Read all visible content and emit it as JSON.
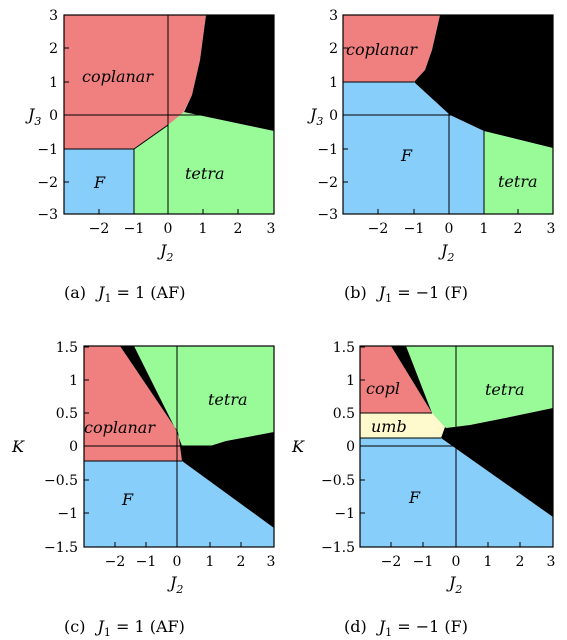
{
  "panels": [
    {
      "id": "a",
      "caption": {
        "label": "(a)",
        "eq": "J",
        "eq_sub": "1",
        "eq_rest": " = 1 (AF)"
      },
      "xlabel": {
        "main": "J",
        "sub": "2"
      },
      "ylabel": {
        "main": "J",
        "sub": "3"
      },
      "xticks": [
        "−2",
        "−1",
        "0",
        "1",
        "2",
        "3"
      ],
      "yticks": [
        "3",
        "2",
        "1",
        "0",
        "−1",
        "−2",
        "−3"
      ],
      "regions": {
        "coplanar": {
          "label": "coplanar",
          "color": "#f08080"
        },
        "F": {
          "label": "F",
          "color": "#87cefa"
        },
        "tetra": {
          "label": "tetra",
          "color": "#98fb98"
        },
        "black": {
          "label": "",
          "color": "#000000"
        }
      }
    },
    {
      "id": "b",
      "caption": {
        "label": "(b)",
        "eq": "J",
        "eq_sub": "1",
        "eq_rest": " = −1 (F)"
      },
      "xlabel": {
        "main": "J",
        "sub": "2"
      },
      "ylabel": {
        "main": "J",
        "sub": "3"
      },
      "xticks": [
        "−2",
        "−1",
        "0",
        "1",
        "2",
        "3"
      ],
      "yticks": [
        "3",
        "2",
        "1",
        "0",
        "−1",
        "−2",
        "−3"
      ],
      "regions": {
        "coplanar": {
          "label": "coplanar",
          "color": "#f08080"
        },
        "F": {
          "label": "F",
          "color": "#87cefa"
        },
        "tetra": {
          "label": "tetra",
          "color": "#98fb98"
        },
        "black": {
          "label": "",
          "color": "#000000"
        }
      }
    },
    {
      "id": "c",
      "caption": {
        "label": "(c)",
        "eq": "J",
        "eq_sub": "1",
        "eq_rest": " = 1 (AF)"
      },
      "xlabel": {
        "main": "J",
        "sub": "2"
      },
      "ylabel": {
        "main": "K",
        "sub": ""
      },
      "xticks": [
        "−2",
        "−1",
        "0",
        "1",
        "2",
        "3"
      ],
      "yticks": [
        "1.5",
        "1",
        "0.5",
        "0",
        "−0.5",
        "−1",
        "−1.5"
      ],
      "regions": {
        "coplanar": {
          "label": "coplanar",
          "color": "#f08080"
        },
        "F": {
          "label": "F",
          "color": "#87cefa"
        },
        "tetra": {
          "label": "tetra",
          "color": "#98fb98"
        },
        "black": {
          "label": "",
          "color": "#000000"
        }
      }
    },
    {
      "id": "d",
      "caption": {
        "label": "(d)",
        "eq": "J",
        "eq_sub": "1",
        "eq_rest": " = −1 (F)"
      },
      "xlabel": {
        "main": "J",
        "sub": "2"
      },
      "ylabel": {
        "main": "K",
        "sub": ""
      },
      "xticks": [
        "−2",
        "−1",
        "0",
        "1",
        "2",
        "3"
      ],
      "yticks": [
        "1.5",
        "1",
        "0.5",
        "0",
        "−0.5",
        "−1",
        "−1.5"
      ],
      "regions": {
        "coplanar": {
          "label": "copl",
          "color": "#f08080"
        },
        "umb": {
          "label": "umb",
          "color": "#fffacd"
        },
        "F": {
          "label": "F",
          "color": "#87cefa"
        },
        "tetra": {
          "label": "tetra",
          "color": "#98fb98"
        },
        "black": {
          "label": "",
          "color": "#000000"
        }
      }
    }
  ]
}
